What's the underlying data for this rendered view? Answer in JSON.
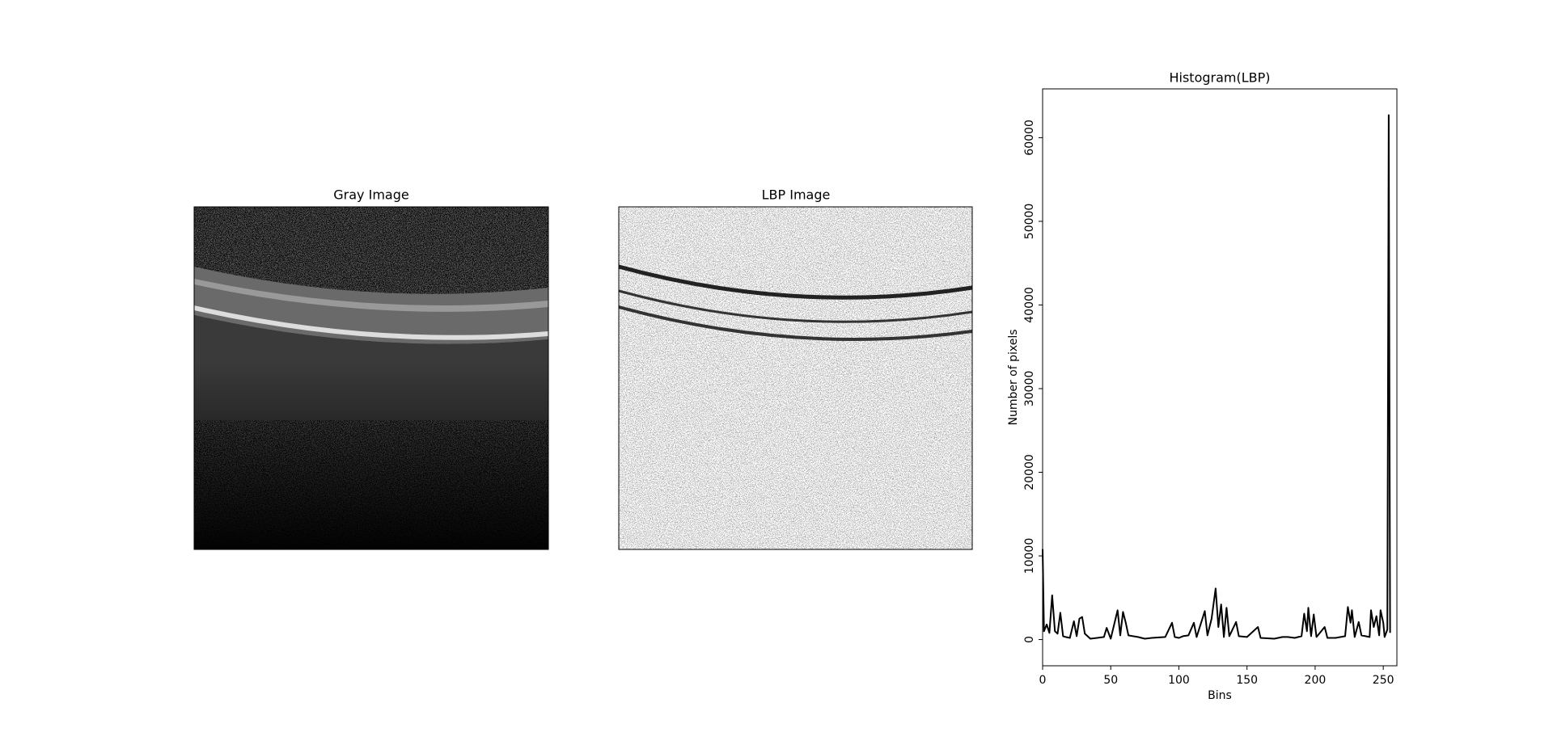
{
  "panels": [
    {
      "title": "Gray Image"
    },
    {
      "title": "LBP Image"
    }
  ],
  "chart_data": {
    "type": "line",
    "title": "Histogram(LBP)",
    "xlabel": "Bins",
    "ylabel": "Number of pixels",
    "color": "#000000",
    "x": [
      0,
      1,
      3,
      5,
      7,
      9,
      11,
      13,
      15,
      17,
      20,
      23,
      25,
      27,
      29,
      31,
      35,
      40,
      45,
      47,
      50,
      55,
      57,
      59,
      61,
      63,
      70,
      75,
      80,
      90,
      95,
      97,
      100,
      103,
      107,
      111,
      113,
      119,
      121,
      124,
      127,
      129,
      131,
      133,
      135,
      137,
      142,
      144,
      150,
      158,
      160,
      170,
      176,
      180,
      185,
      190,
      192,
      194,
      195,
      197,
      199,
      201,
      207,
      209,
      215,
      222,
      224,
      226,
      227,
      229,
      232,
      234,
      240,
      241,
      243,
      245,
      247,
      248,
      250,
      251,
      253,
      254,
      255
    ],
    "values": [
      10800,
      1000,
      1800,
      800,
      5300,
      1000,
      700,
      3200,
      400,
      300,
      200,
      2200,
      400,
      2500,
      2700,
      700,
      100,
      200,
      300,
      1400,
      100,
      3500,
      500,
      3300,
      2000,
      500,
      300,
      100,
      200,
      300,
      2000,
      300,
      200,
      400,
      500,
      2000,
      300,
      3400,
      500,
      2500,
      6100,
      1500,
      4200,
      300,
      3800,
      400,
      2100,
      400,
      300,
      1500,
      200,
      100,
      300,
      300,
      200,
      400,
      3100,
      1000,
      3800,
      400,
      3000,
      300,
      1500,
      200,
      200,
      400,
      3900,
      2000,
      3500,
      300,
      2100,
      500,
      300,
      3500,
      1500,
      2800,
      500,
      3500,
      2000,
      300,
      1200,
      62700,
      800
    ],
    "xlim": [
      0,
      260
    ],
    "ylim": [
      -3135,
      65835
    ],
    "xticks": [
      0,
      50,
      100,
      150,
      200,
      250
    ],
    "yticks": [
      0,
      10000,
      20000,
      30000,
      40000,
      50000,
      60000
    ]
  }
}
